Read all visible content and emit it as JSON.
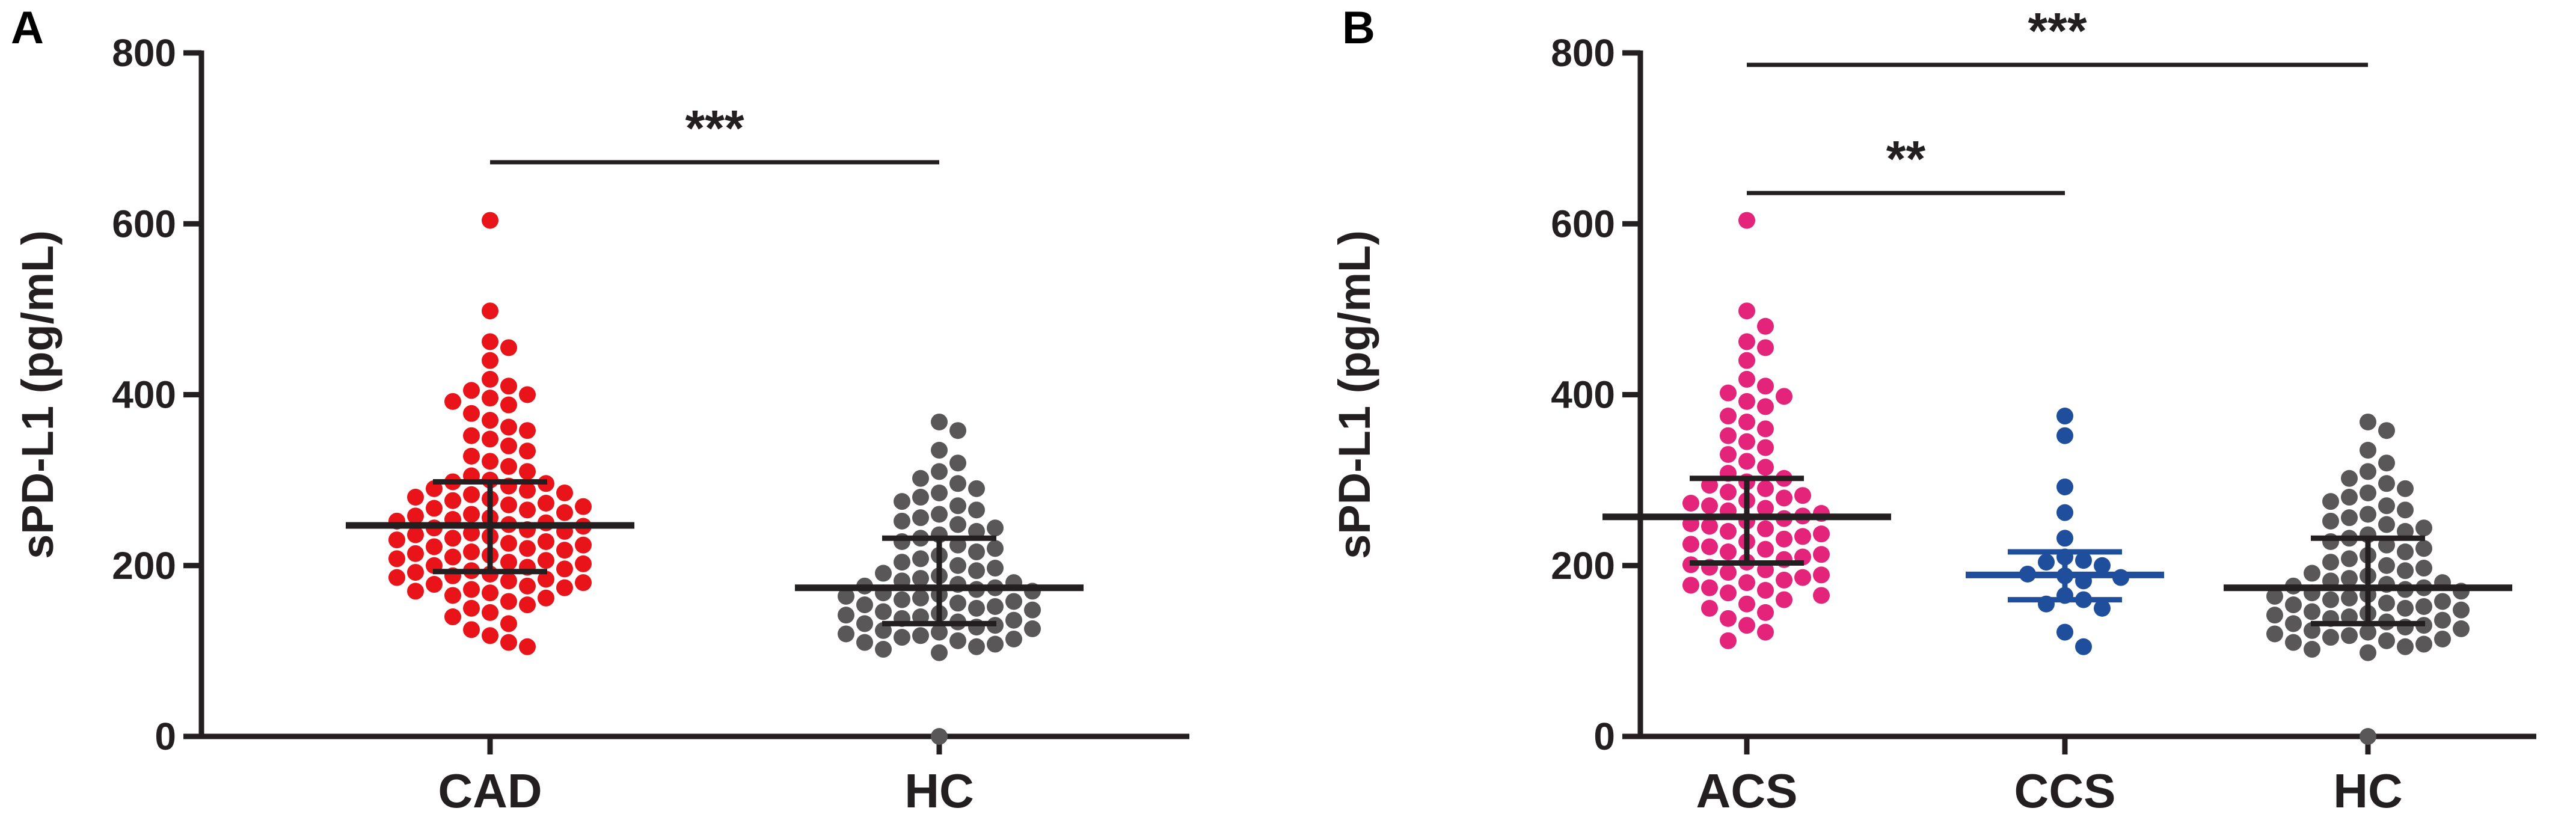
{
  "chart_data": [
    {
      "panel": "A",
      "type": "scatter",
      "ylabel": "sPD-L1 (pg/mL)",
      "ylim": [
        0,
        800
      ],
      "yticks": [
        0,
        200,
        400,
        600,
        800
      ],
      "groups": [
        {
          "name": "CAD",
          "color": "#e8141a",
          "values": [
            604,
            498,
            462,
            455,
            440,
            418,
            410,
            405,
            400,
            396,
            392,
            388,
            378,
            370,
            362,
            358,
            352,
            348,
            340,
            334,
            328,
            322,
            316,
            310,
            305,
            300,
            298,
            296,
            293,
            290,
            288,
            285,
            283,
            280,
            278,
            276,
            273,
            271,
            269,
            267,
            265,
            262,
            260,
            258,
            256,
            254,
            252,
            250,
            248,
            246,
            244,
            242,
            240,
            238,
            236,
            234,
            232,
            230,
            228,
            226,
            224,
            222,
            220,
            218,
            216,
            214,
            212,
            210,
            208,
            206,
            204,
            202,
            200,
            198,
            196,
            194,
            192,
            190,
            188,
            186,
            184,
            182,
            180,
            178,
            176,
            174,
            172,
            170,
            168,
            165,
            162,
            158,
            154,
            150,
            145,
            140,
            132,
            125,
            118,
            110,
            105
          ],
          "median": 247,
          "q1": 193,
          "q3": 298
        },
        {
          "name": "HC",
          "color": "#595757",
          "values": [
            368,
            358,
            335,
            320,
            310,
            302,
            296,
            290,
            285,
            280,
            275,
            270,
            265,
            260,
            256,
            252,
            248,
            244,
            240,
            236,
            232,
            228,
            224,
            220,
            216,
            212,
            208,
            204,
            200,
            197,
            194,
            191,
            188,
            185,
            182,
            180,
            178,
            176,
            174,
            172,
            170,
            168,
            166,
            164,
            162,
            160,
            158,
            156,
            154,
            152,
            150,
            148,
            146,
            144,
            142,
            140,
            138,
            136,
            134,
            132,
            130,
            128,
            126,
            124,
            122,
            120,
            118,
            116,
            114,
            112,
            110,
            108,
            105,
            102,
            98,
            0
          ],
          "median": 174,
          "q1": 132,
          "q3": 232
        }
      ],
      "significance": [
        {
          "from": "CAD",
          "to": "HC",
          "label": "***",
          "y": 672
        }
      ]
    },
    {
      "panel": "B",
      "type": "scatter",
      "ylabel": "sPD-L1 (pg/mL)",
      "ylim": [
        0,
        800
      ],
      "yticks": [
        0,
        200,
        400,
        600,
        800
      ],
      "groups": [
        {
          "name": "ACS",
          "color": "#e4247b",
          "values": [
            604,
            498,
            480,
            462,
            455,
            440,
            418,
            410,
            402,
            398,
            392,
            386,
            375,
            368,
            360,
            352,
            345,
            338,
            330,
            322,
            315,
            308,
            302,
            298,
            294,
            290,
            286,
            282,
            279,
            276,
            273,
            270,
            267,
            264,
            261,
            258,
            255,
            252,
            249,
            246,
            243,
            240,
            237,
            234,
            231,
            228,
            225,
            222,
            219,
            216,
            213,
            210,
            207,
            204,
            201,
            198,
            195,
            192,
            189,
            186,
            183,
            180,
            177,
            174,
            171,
            168,
            165,
            160,
            155,
            150,
            145,
            138,
            130,
            122,
            112
          ],
          "median": 257,
          "q1": 203,
          "q3": 302
        },
        {
          "name": "CCS",
          "color": "#1f4e9d",
          "values": [
            375,
            352,
            292,
            262,
            232,
            210,
            206,
            204,
            200,
            190,
            188,
            186,
            182,
            165,
            160,
            155,
            150,
            122,
            105
          ],
          "median": 189,
          "q1": 160,
          "q3": 216
        },
        {
          "name": "HC",
          "color": "#595757",
          "values": [
            368,
            358,
            335,
            320,
            310,
            302,
            296,
            290,
            285,
            280,
            275,
            270,
            265,
            260,
            256,
            252,
            248,
            244,
            240,
            236,
            232,
            228,
            224,
            220,
            216,
            212,
            208,
            204,
            200,
            197,
            194,
            191,
            188,
            185,
            182,
            180,
            178,
            176,
            174,
            172,
            170,
            168,
            166,
            164,
            162,
            160,
            158,
            156,
            154,
            152,
            150,
            148,
            146,
            144,
            142,
            140,
            138,
            136,
            134,
            132,
            130,
            128,
            126,
            124,
            122,
            120,
            118,
            116,
            114,
            112,
            110,
            108,
            105,
            102,
            98,
            0
          ],
          "median": 174,
          "q1": 132,
          "q3": 232
        }
      ],
      "significance": [
        {
          "from": "ACS",
          "to": "HC",
          "label": "***",
          "y": 786
        },
        {
          "from": "ACS",
          "to": "CCS",
          "label": "**",
          "y": 636
        }
      ]
    }
  ]
}
